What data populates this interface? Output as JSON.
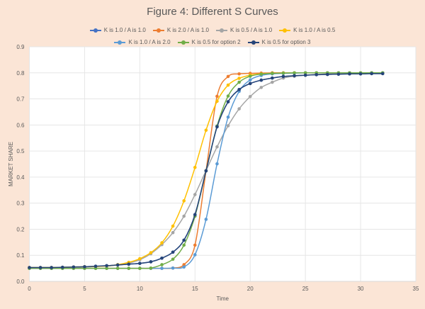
{
  "chart_data": {
    "type": "line",
    "title": "Figure 4: Different S Curves",
    "xlabel": "Time",
    "ylabel": "MARKET SHARE",
    "xlim": [
      0,
      35
    ],
    "ylim": [
      0,
      0.9
    ],
    "xticks": [
      0,
      5,
      10,
      15,
      20,
      25,
      30,
      35
    ],
    "yticks": [
      0.0,
      0.1,
      0.2,
      0.3,
      0.4,
      0.5,
      0.6,
      0.7,
      0.8,
      0.9
    ],
    "ytick_labels": [
      "0.0",
      "0.1",
      "0.2",
      "0.3",
      "0.4",
      "0.5",
      "0.6",
      "0.7",
      "0.8",
      "0.9"
    ],
    "grid": true,
    "legend_position": "top",
    "x": [
      0,
      1,
      2,
      3,
      4,
      5,
      6,
      7,
      8,
      9,
      10,
      11,
      12,
      13,
      14,
      15,
      16,
      17,
      18,
      19,
      20,
      21,
      22,
      23,
      24,
      25,
      26,
      27,
      28,
      29,
      30,
      31,
      32
    ],
    "series": [
      {
        "name": "K is 1.0 / A is 1.0",
        "color": "#4472c4",
        "values": [
          0.053,
          0.053,
          0.053,
          0.054,
          0.055,
          0.056,
          0.058,
          0.06,
          0.063,
          0.066,
          0.069,
          0.075,
          0.089,
          0.112,
          0.158,
          0.256,
          0.424,
          0.593,
          0.689,
          0.736,
          0.759,
          0.772,
          0.78,
          0.786,
          0.789,
          0.791,
          0.793,
          0.794,
          0.795,
          0.796,
          0.796,
          0.797,
          0.797
        ]
      },
      {
        "name": "K is 2.0 / A is 1.0",
        "color": "#ed7d31",
        "values": [
          0.05,
          0.05,
          0.05,
          0.05,
          0.05,
          0.05,
          0.05,
          0.05,
          0.05,
          0.05,
          0.05,
          0.05,
          0.05,
          0.051,
          0.064,
          0.139,
          0.424,
          0.71,
          0.786,
          0.796,
          0.798,
          0.799,
          0.8,
          0.8,
          0.8,
          0.8,
          0.8,
          0.8,
          0.8,
          0.8,
          0.8,
          0.8,
          0.8
        ]
      },
      {
        "name": "K is 0.5 / A is 1.0",
        "color": "#a5a5a5",
        "values": [
          0.052,
          0.052,
          0.053,
          0.053,
          0.054,
          0.055,
          0.057,
          0.059,
          0.063,
          0.07,
          0.083,
          0.106,
          0.141,
          0.187,
          0.25,
          0.333,
          0.425,
          0.516,
          0.597,
          0.662,
          0.709,
          0.744,
          0.764,
          0.78,
          0.787,
          0.791,
          0.794,
          0.796,
          0.797,
          0.798,
          0.798,
          0.799,
          0.799
        ]
      },
      {
        "name": "K is 1.0 / A is 0.5",
        "color": "#ffc000",
        "values": [
          0.053,
          0.053,
          0.053,
          0.054,
          0.055,
          0.056,
          0.057,
          0.059,
          0.064,
          0.073,
          0.087,
          0.11,
          0.148,
          0.212,
          0.309,
          0.437,
          0.58,
          0.691,
          0.753,
          0.779,
          0.791,
          0.796,
          0.798,
          0.799,
          0.8,
          0.8,
          0.8,
          0.8,
          0.8,
          0.8,
          0.8,
          0.8,
          0.8
        ]
      },
      {
        "name": "K is 1.0 / A is 2.0",
        "color": "#5b9bd5",
        "values": [
          0.05,
          0.05,
          0.05,
          0.05,
          0.05,
          0.05,
          0.05,
          0.05,
          0.05,
          0.05,
          0.05,
          0.05,
          0.05,
          0.051,
          0.055,
          0.102,
          0.238,
          0.451,
          0.63,
          0.729,
          0.773,
          0.79,
          0.796,
          0.798,
          0.799,
          0.8,
          0.8,
          0.8,
          0.8,
          0.8,
          0.8,
          0.8,
          0.8
        ]
      },
      {
        "name": "K is 0.5 for option 2",
        "color": "#70ad47",
        "values": [
          0.05,
          0.05,
          0.05,
          0.05,
          0.05,
          0.05,
          0.05,
          0.05,
          0.05,
          0.05,
          0.05,
          0.051,
          0.064,
          0.085,
          0.139,
          0.25,
          0.424,
          0.596,
          0.711,
          0.764,
          0.787,
          0.795,
          0.798,
          0.799,
          0.8,
          0.8,
          0.8,
          0.8,
          0.8,
          0.8,
          0.8,
          0.8,
          0.8
        ]
      },
      {
        "name": "K is 0.5 for option 3",
        "color": "#264478",
        "values": [
          0.053,
          0.053,
          0.053,
          0.054,
          0.055,
          0.056,
          0.058,
          0.06,
          0.063,
          0.066,
          0.069,
          0.075,
          0.089,
          0.112,
          0.158,
          0.256,
          0.424,
          0.593,
          0.689,
          0.736,
          0.759,
          0.772,
          0.78,
          0.786,
          0.789,
          0.791,
          0.793,
          0.794,
          0.795,
          0.796,
          0.796,
          0.797,
          0.797
        ]
      }
    ],
    "legend_rows": [
      [
        0,
        1,
        2,
        3
      ],
      [
        4,
        5,
        6
      ]
    ]
  },
  "style": {
    "plot_bg": "#ffffff",
    "page_bg": "#fbe5d6",
    "grid_color": "#e6e6e6",
    "text_color": "#595959"
  }
}
